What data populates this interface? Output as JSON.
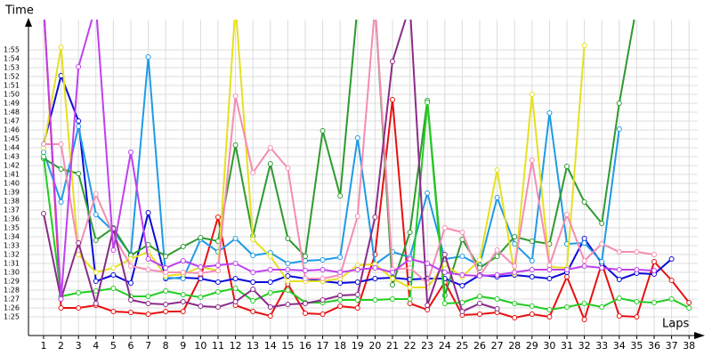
{
  "chart_data": {
    "type": "line",
    "y_label": "Time",
    "x_label": "Laps",
    "grid": true,
    "x": [
      1,
      2,
      3,
      4,
      5,
      6,
      7,
      8,
      9,
      10,
      11,
      12,
      13,
      14,
      15,
      16,
      17,
      18,
      19,
      20,
      21,
      22,
      23,
      24,
      25,
      26,
      27,
      28,
      29,
      30,
      31,
      32,
      33,
      34,
      35,
      36,
      37,
      38
    ],
    "xlim": [
      0.15,
      38.5
    ],
    "xticks": [
      1,
      2,
      3,
      4,
      5,
      6,
      7,
      8,
      9,
      10,
      11,
      12,
      13,
      14,
      15,
      16,
      17,
      18,
      19,
      20,
      21,
      22,
      23,
      24,
      25,
      26,
      27,
      28,
      29,
      30,
      31,
      32,
      33,
      34,
      35,
      36,
      37,
      38
    ],
    "ylim": [
      82.9,
      118.4
    ],
    "yticks": [
      {
        "value": 85,
        "label": "1:25"
      },
      {
        "value": 86,
        "label": "1:26"
      },
      {
        "value": 87,
        "label": "1:27"
      },
      {
        "value": 88,
        "label": "1:28"
      },
      {
        "value": 89,
        "label": "1:29"
      },
      {
        "value": 90,
        "label": "1:30"
      },
      {
        "value": 91,
        "label": "1:31"
      },
      {
        "value": 92,
        "label": "1:32"
      },
      {
        "value": 93,
        "label": "1:33"
      },
      {
        "value": 94,
        "label": "1:34"
      },
      {
        "value": 95,
        "label": "1:35"
      },
      {
        "value": 96,
        "label": "1:36"
      },
      {
        "value": 97,
        "label": "1:37"
      },
      {
        "value": 98,
        "label": "1:38"
      },
      {
        "value": 99,
        "label": "1:39"
      },
      {
        "value": 100,
        "label": "1:40"
      },
      {
        "value": 101,
        "label": "1:41"
      },
      {
        "value": 102,
        "label": "1:42"
      },
      {
        "value": 103,
        "label": "1:43"
      },
      {
        "value": 104,
        "label": "1:44"
      },
      {
        "value": 105,
        "label": "1:45"
      },
      {
        "value": 106,
        "label": "1:46"
      },
      {
        "value": 107,
        "label": "1:47"
      },
      {
        "value": 108,
        "label": "1:48"
      },
      {
        "value": 109,
        "label": "1:49"
      },
      {
        "value": 110,
        "label": "1:50"
      },
      {
        "value": 111,
        "label": "1:51"
      },
      {
        "value": 112,
        "label": "1:52"
      },
      {
        "value": 113,
        "label": "1:53"
      },
      {
        "value": 114,
        "label": "1:54"
      },
      {
        "value": 115,
        "label": "1:55"
      }
    ],
    "series": [
      {
        "color": "#e81010",
        "values": [
          120,
          86.0,
          86.0,
          86.3,
          85.6,
          85.5,
          85.3,
          85.6,
          85.6,
          89.5,
          96.2,
          86.3,
          85.6,
          85.1,
          88.7,
          85.4,
          85.3,
          86.2,
          86.0,
          92.0,
          109.4,
          86.5,
          85.8,
          88.9,
          85.2,
          85.3,
          85.5,
          84.9,
          85.3,
          85.0,
          89.5,
          84.7,
          91.0,
          85.1,
          85.0,
          91.2,
          89.1,
          86.6
        ]
      },
      {
        "color": "#0a0adc",
        "values": [
          104.4,
          112.1,
          107.0,
          89.0,
          89.7,
          88.8,
          96.7,
          89.3,
          89.4,
          89.3,
          88.9,
          89.3,
          88.9,
          88.9,
          89.6,
          89.3,
          89.0,
          88.8,
          88.9,
          89.3,
          89.4,
          89.2,
          89.3,
          89.3,
          88.5,
          89.7,
          89.5,
          89.7,
          89.5,
          89.3,
          90.0,
          93.8,
          91.0,
          89.2,
          89.9,
          89.8,
          91.5,
          null
        ]
      },
      {
        "color": "#1e9be6",
        "values": [
          103.5,
          97.9,
          106.4,
          96.5,
          94.6,
          92.0,
          114.2,
          89.4,
          89.3,
          93.7,
          92.3,
          93.8,
          91.9,
          92.2,
          91.0,
          91.3,
          91.4,
          91.7,
          105.1,
          90.9,
          92.3,
          91.7,
          98.9,
          91.5,
          91.8,
          90.8,
          98.4,
          93.2,
          91.3,
          107.9,
          93.2,
          93.3,
          91.2,
          106.1,
          null,
          null,
          null,
          null
        ]
      },
      {
        "color": "#2e9a2e",
        "values": [
          102.8,
          101.6,
          101.1,
          93.6,
          95.0,
          91.9,
          93.1,
          91.8,
          92.9,
          93.9,
          93.5,
          104.3,
          94.1,
          102.2,
          93.8,
          91.8,
          105.9,
          98.6,
          120,
          120,
          88.6,
          94.5,
          109.3,
          87.4,
          93.7,
          90.5,
          91.8,
          94.0,
          93.5,
          93.2,
          101.9,
          97.9,
          95.5,
          109.0,
          120,
          null,
          null,
          null
        ]
      },
      {
        "color": "#22cc22",
        "values": [
          103.0,
          87.3,
          87.7,
          87.9,
          88.2,
          87.3,
          87.3,
          87.9,
          87.5,
          87.2,
          87.8,
          88.2,
          86.8,
          87.7,
          88.0,
          86.6,
          86.6,
          86.9,
          86.9,
          86.9,
          87.0,
          87.0,
          109.1,
          86.5,
          86.6,
          87.3,
          87.0,
          86.5,
          86.2,
          85.8,
          86.1,
          86.5,
          86.1,
          87.1,
          86.7,
          86.6,
          87.0,
          86.0
        ]
      },
      {
        "color": "#e6e020",
        "values": [
          104.0,
          115.3,
          92.0,
          90.0,
          90.5,
          91.5,
          92.3,
          89.6,
          89.8,
          90.6,
          90.2,
          120,
          93.7,
          91.8,
          89.0,
          89.0,
          89.0,
          89.3,
          90.8,
          90.9,
          89.3,
          88.3,
          88.3,
          90.9,
          89.5,
          91.4,
          101.5,
          89.8,
          110.0,
          90.6,
          90.5,
          115.5,
          null,
          null,
          null,
          null,
          null,
          null
        ]
      },
      {
        "color": "#f58cb4",
        "values": [
          104.4,
          104.4,
          92.5,
          98.8,
          94.2,
          90.7,
          90.3,
          90.0,
          90.0,
          89.9,
          90.2,
          109.8,
          101.2,
          104.0,
          101.7,
          89.3,
          89.3,
          89.7,
          96.3,
          120,
          90.3,
          90.5,
          88.8,
          95.0,
          94.5,
          89.6,
          92.5,
          90.7,
          102.6,
          90.8,
          96.5,
          91.3,
          93.2,
          92.3,
          92.3,
          92.0,
          null,
          null
        ]
      },
      {
        "color": "#8a2c8a",
        "values": [
          96.6,
          87.0,
          93.3,
          86.5,
          94.9,
          86.9,
          86.5,
          86.4,
          86.7,
          86.2,
          86.1,
          86.7,
          88.1,
          86.1,
          86.4,
          86.5,
          86.9,
          87.4,
          87.5,
          96.2,
          113.7,
          120,
          86.3,
          92.0,
          85.6,
          86.5,
          85.9,
          null,
          null,
          null,
          null,
          null,
          null,
          null,
          null,
          null,
          null,
          null
        ]
      },
      {
        "color": "#c040f0",
        "values": [
          120,
          87.0,
          113.1,
          120,
          92.5,
          103.5,
          91.5,
          90.5,
          91.3,
          90.6,
          90.8,
          91.0,
          90.0,
          90.3,
          90.3,
          90.2,
          90.3,
          90.0,
          90.3,
          90.5,
          90.0,
          91.5,
          91.0,
          90.0,
          89.7,
          89.6,
          89.7,
          90.0,
          90.3,
          90.3,
          90.3,
          90.7,
          90.5,
          90.3,
          90.3,
          90.2,
          null,
          null
        ]
      }
    ]
  }
}
